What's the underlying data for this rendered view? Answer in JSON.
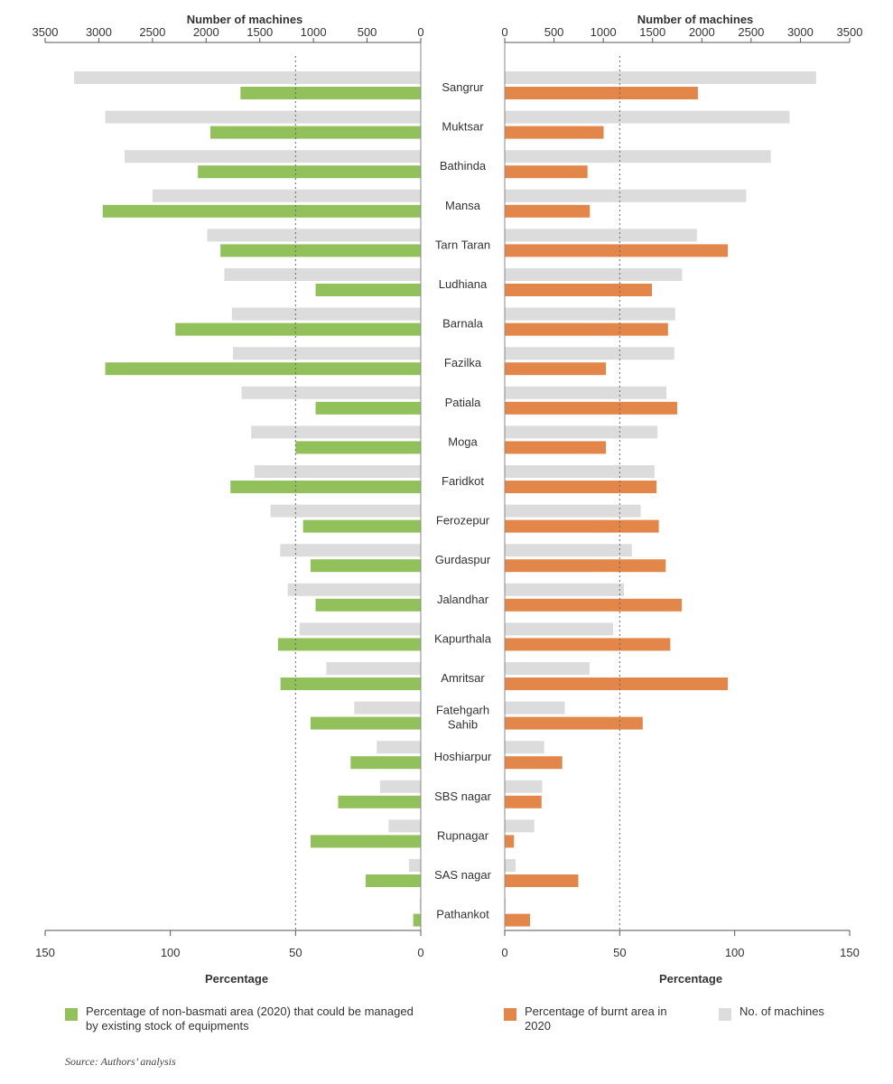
{
  "chart_data": {
    "type": "bar",
    "categories": [
      "Sangrur",
      "Muktsar",
      "Bathinda",
      "Mansa",
      "Tarn Taran",
      "Ludhiana",
      "Barnala",
      "Fazilka",
      "Patiala",
      "Moga",
      "Faridkot",
      "Ferozepur",
      "Gurdaspur",
      "Jalandhar",
      "Kapurthala",
      "Amritsar",
      "Fatehgarh Sahib",
      "Hoshiarpur",
      "SBS nagar",
      "Rupnagar",
      "SAS nagar",
      "Pathankot"
    ],
    "machines_top_axis_label": "Number of machines",
    "percentage_bottom_axis_label": "Percentage",
    "machines_axis_range": [
      0,
      3500
    ],
    "machines_ticks": [
      0,
      500,
      1000,
      1500,
      2000,
      2500,
      3000,
      3500
    ],
    "percentage_axis_range": [
      0,
      150
    ],
    "percentage_ticks": [
      0,
      50,
      100,
      150
    ],
    "reference_line_percentage": 50,
    "left_panel": {
      "series": [
        {
          "name": "No. of machines",
          "color": "#dcdcdc",
          "axis": "machines",
          "values": [
            3230,
            2940,
            2760,
            2500,
            1990,
            1830,
            1760,
            1750,
            1670,
            1580,
            1550,
            1400,
            1310,
            1240,
            1130,
            880,
            620,
            410,
            380,
            300,
            110,
            10
          ]
        },
        {
          "name": "Percentage of non-basmati area (2020) that could be managed by existing stock of equipments",
          "color": "#92c05a",
          "axis": "percentage",
          "values": [
            72,
            84,
            89,
            127,
            80,
            42,
            98,
            126,
            42,
            50,
            76,
            47,
            44,
            42,
            57,
            56,
            44,
            28,
            33,
            44,
            22,
            3
          ]
        }
      ]
    },
    "right_panel": {
      "series": [
        {
          "name": "No. of machines",
          "color": "#dcdcdc",
          "axis": "machines",
          "values": [
            3160,
            2890,
            2700,
            2450,
            1950,
            1800,
            1730,
            1720,
            1640,
            1550,
            1520,
            1380,
            1290,
            1210,
            1100,
            860,
            610,
            400,
            380,
            300,
            110,
            10
          ]
        },
        {
          "name": "Percentage of burnt area in 2020",
          "color": "#e3864a",
          "axis": "percentage",
          "values": [
            84,
            43,
            36,
            37,
            97,
            64,
            71,
            44,
            75,
            44,
            66,
            67,
            70,
            77,
            72,
            97,
            60,
            25,
            16,
            4,
            32,
            11
          ]
        }
      ]
    }
  },
  "legend": {
    "green_label": "Percentage of non-basmati area (2020) that could be managed by existing stock of equipments",
    "orange_label": "Percentage of burnt area in 2020",
    "gray_label": "No. of machines",
    "green_color": "#92c05a",
    "orange_color": "#e3864a",
    "gray_color": "#dcdcdc"
  },
  "source": "Source: Authors’ analysis"
}
